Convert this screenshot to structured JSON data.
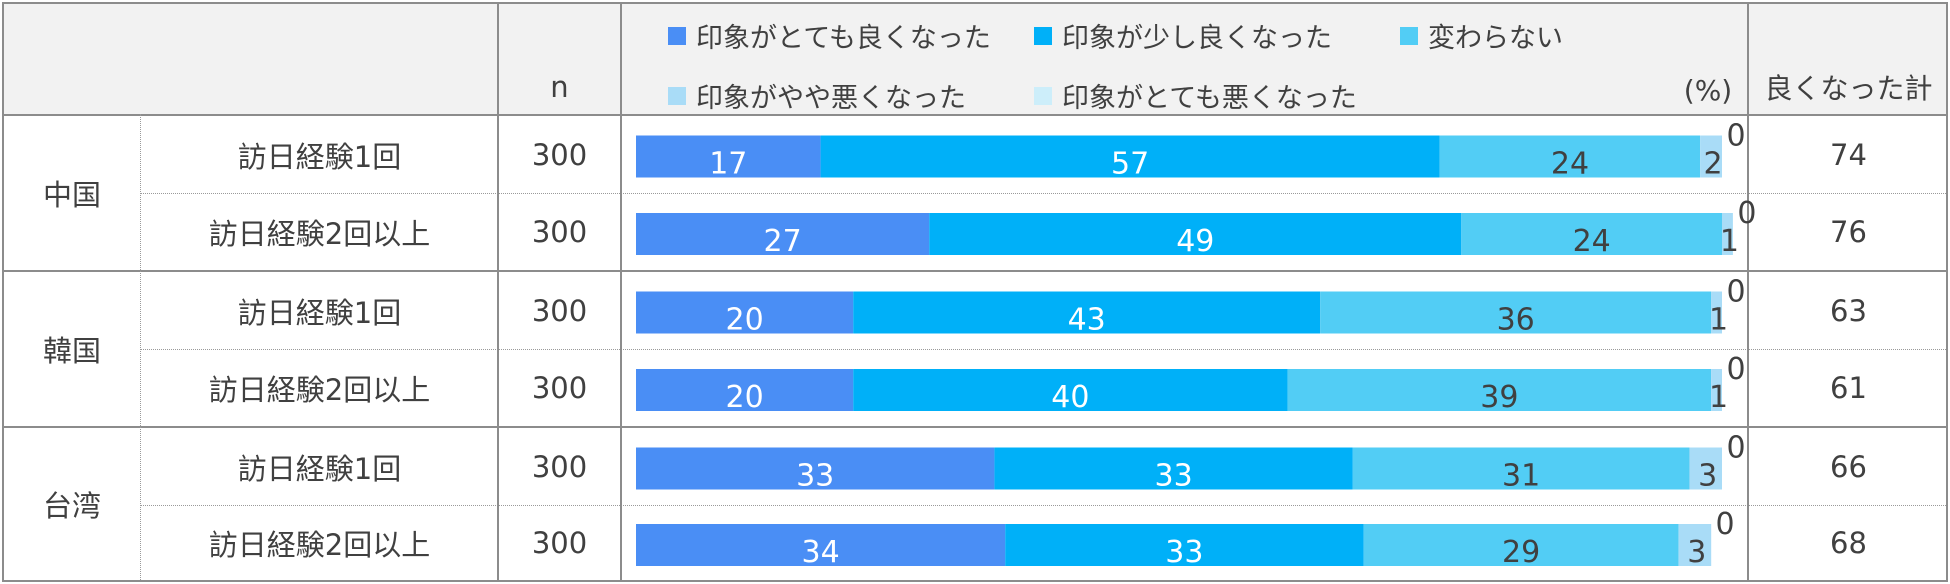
{
  "header": {
    "n_label": "n",
    "unit": "(%)",
    "total_label": "良くなった計"
  },
  "colors": {
    "seg1": "#4a8ef5",
    "seg2": "#00b0f8",
    "seg3": "#52cdf5",
    "seg4": "#a9dcf7",
    "seg5": "#cdeefa",
    "label_dark_text": "#404040",
    "label_light_text": "#ffffff"
  },
  "groups": [
    {
      "country": "中国"
    },
    {
      "country": "韓国"
    },
    {
      "country": "台湾"
    }
  ],
  "rows": [
    {
      "group": "中国",
      "sub": "訪日経験1回",
      "n": "300",
      "total": "74"
    },
    {
      "group": "中国",
      "sub": "訪日経験2回以上",
      "n": "300",
      "total": "76"
    },
    {
      "group": "韓国",
      "sub": "訪日経験1回",
      "n": "300",
      "total": "63"
    },
    {
      "group": "韓国",
      "sub": "訪日経験2回以上",
      "n": "300",
      "total": "61"
    },
    {
      "group": "台湾",
      "sub": "訪日経験1回",
      "n": "300",
      "total": "66"
    },
    {
      "group": "台湾",
      "sub": "訪日経験2回以上",
      "n": "300",
      "total": "68"
    }
  ],
  "chart_data": {
    "type": "bar",
    "orientation": "horizontal",
    "stacked": true,
    "unit": "%",
    "xlim": [
      0,
      100
    ],
    "categories": [
      "中国 訪日経験1回",
      "中国 訪日経験2回以上",
      "韓国 訪日経験1回",
      "韓国 訪日経験2回以上",
      "台湾 訪日経験1回",
      "台湾 訪日経験2回以上"
    ],
    "series": [
      {
        "name": "印象がとても良くなった",
        "values": [
          17,
          27,
          20,
          20,
          33,
          34
        ]
      },
      {
        "name": "印象が少し良くなった",
        "values": [
          57,
          49,
          43,
          40,
          33,
          33
        ]
      },
      {
        "name": "変わらない",
        "values": [
          24,
          24,
          36,
          39,
          31,
          29
        ]
      },
      {
        "name": "印象がやや悪くなった",
        "values": [
          2,
          1,
          1,
          1,
          3,
          3
        ]
      },
      {
        "name": "印象がとても悪くなった",
        "values": [
          0,
          0,
          0,
          0,
          0,
          0
        ]
      }
    ],
    "legend_position": "top",
    "grid": false
  }
}
